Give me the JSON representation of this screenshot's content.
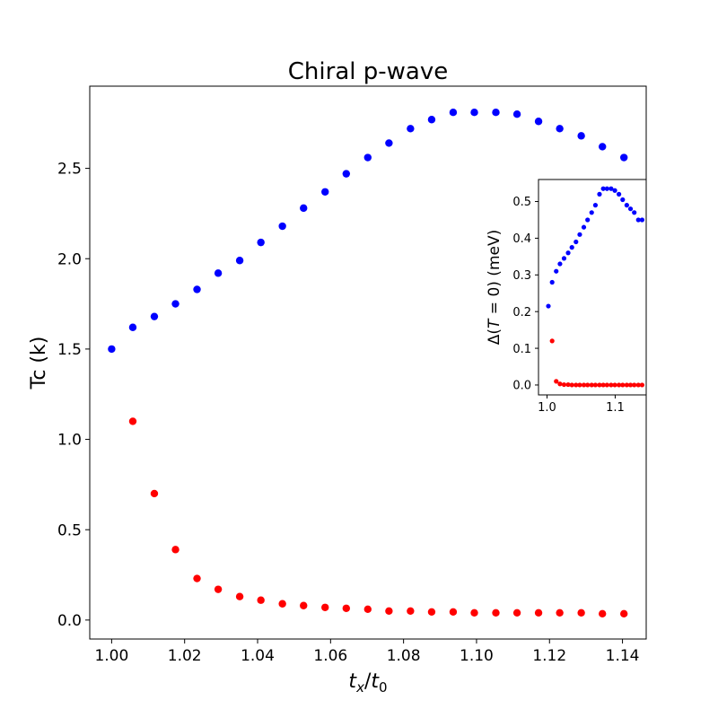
{
  "chart_data": [
    {
      "type": "scatter",
      "title": "Chiral p-wave",
      "xlabel_base": "t",
      "xlabel_sub": "x",
      "xlabel_den_base": "t",
      "xlabel_den_sub": "0",
      "ylabel": "Tc (k)",
      "xlim": [
        0.994,
        1.1465
      ],
      "ylim": [
        -0.105,
        2.955
      ],
      "xticks": [
        1.0,
        1.02,
        1.04,
        1.06,
        1.08,
        1.1,
        1.12,
        1.14
      ],
      "xtick_labels": [
        "1.00",
        "1.02",
        "1.04",
        "1.06",
        "1.08",
        "1.10",
        "1.12",
        "1.14"
      ],
      "yticks": [
        0.0,
        0.5,
        1.0,
        1.5,
        2.0,
        2.5
      ],
      "ytick_labels": [
        "0.0",
        "0.5",
        "1.0",
        "1.5",
        "2.0",
        "2.5"
      ],
      "grid": false,
      "legend": "none",
      "series": [
        {
          "color": "#0000ff",
          "x": [
            1.0,
            1.0058,
            1.0117,
            1.0175,
            1.0234,
            1.0292,
            1.0351,
            1.0409,
            1.0468,
            1.0526,
            1.0585,
            1.0643,
            1.0702,
            1.076,
            1.0819,
            1.0877,
            1.0936,
            1.0994,
            1.1053,
            1.1111,
            1.117,
            1.1228,
            1.1287,
            1.1345,
            1.1404
          ],
          "y": [
            1.5,
            1.62,
            1.68,
            1.75,
            1.83,
            1.92,
            1.99,
            2.09,
            2.18,
            2.28,
            2.37,
            2.47,
            2.56,
            2.64,
            2.72,
            2.77,
            2.81,
            2.81,
            2.81,
            2.8,
            2.76,
            2.72,
            2.68,
            2.62,
            2.56
          ]
        },
        {
          "color": "#ff0000",
          "x": [
            1.0058,
            1.0117,
            1.0175,
            1.0234,
            1.0292,
            1.0351,
            1.0409,
            1.0468,
            1.0526,
            1.0585,
            1.0643,
            1.0702,
            1.076,
            1.0819,
            1.0877,
            1.0936,
            1.0994,
            1.1053,
            1.1111,
            1.117,
            1.1228,
            1.1287,
            1.1345,
            1.1404
          ],
          "y": [
            1.1,
            0.7,
            0.39,
            0.23,
            0.17,
            0.13,
            0.11,
            0.09,
            0.08,
            0.07,
            0.065,
            0.06,
            0.05,
            0.05,
            0.045,
            0.045,
            0.04,
            0.04,
            0.04,
            0.04,
            0.04,
            0.04,
            0.035,
            0.035
          ]
        }
      ]
    },
    {
      "type": "scatter",
      "title": "",
      "xlabel": "",
      "ylabel_pre": "Δ(",
      "ylabel_italic": "T",
      "ylabel_post": " = 0) (meV)",
      "xlim": [
        0.9875,
        1.1455
      ],
      "ylim": [
        -0.027,
        0.56
      ],
      "xticks": [
        1.0,
        1.1
      ],
      "xtick_labels": [
        "1.0",
        "1.1"
      ],
      "yticks": [
        0.0,
        0.1,
        0.2,
        0.3,
        0.4,
        0.5
      ],
      "ytick_labels": [
        "0.0",
        "0.1",
        "0.2",
        "0.3",
        "0.4",
        "0.5"
      ],
      "grid": false,
      "legend": "none",
      "series": [
        {
          "color": "#0000ff",
          "x": [
            1.002,
            1.0075,
            1.0135,
            1.019,
            1.025,
            1.031,
            1.0365,
            1.0425,
            1.048,
            1.054,
            1.0595,
            1.0655,
            1.071,
            1.077,
            1.0825,
            1.088,
            1.094,
            1.0995,
            1.1055,
            1.111,
            1.117,
            1.1225,
            1.128,
            1.134,
            1.1395
          ],
          "y": [
            0.215,
            0.28,
            0.31,
            0.33,
            0.345,
            0.36,
            0.375,
            0.39,
            0.41,
            0.43,
            0.45,
            0.47,
            0.49,
            0.52,
            0.535,
            0.535,
            0.535,
            0.53,
            0.52,
            0.505,
            0.49,
            0.48,
            0.47,
            0.45,
            0.45
          ]
        },
        {
          "color": "#ff0000",
          "x": [
            1.0075,
            1.0135,
            1.019,
            1.025,
            1.031,
            1.0365,
            1.0425,
            1.048,
            1.054,
            1.0595,
            1.0655,
            1.071,
            1.077,
            1.0825,
            1.088,
            1.094,
            1.0995,
            1.1055,
            1.111,
            1.117,
            1.1225,
            1.128,
            1.134,
            1.1395
          ],
          "y": [
            0.12,
            0.01,
            0.003,
            0.001,
            0.001,
            0.0,
            0.0,
            0.0,
            0.0,
            0.0,
            0.0,
            0.0,
            0.0,
            0.0,
            0.0,
            0.0,
            0.0,
            0.0,
            0.0,
            0.0,
            0.0,
            0.0,
            0.0,
            0.0
          ]
        }
      ]
    }
  ]
}
